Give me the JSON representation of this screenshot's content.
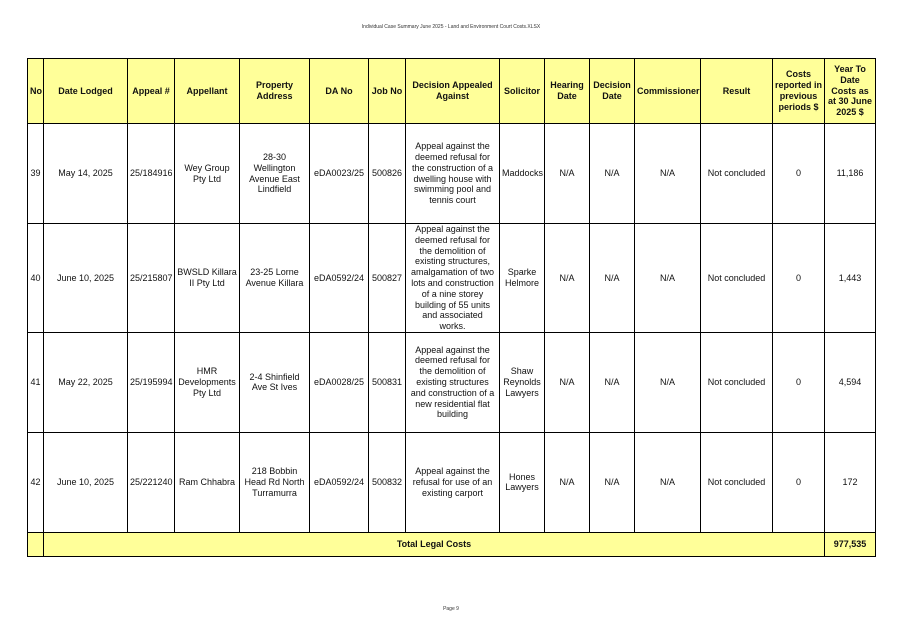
{
  "document": {
    "title": "Individual Case Summary June 2025 - Land and Environment Court Costs.XLSX",
    "page": "Page 9"
  },
  "table": {
    "headers": [
      "No",
      "Date Lodged",
      "Appeal #",
      "Appellant",
      "Property Address",
      "DA No",
      "Job No",
      "Decision Appealed Against",
      "Solicitor",
      "Hearing Date",
      "Decision Date",
      "Commissioner",
      "Result",
      "Costs reported in previous periods $",
      "Year To Date Costs as at 30 June 2025 $"
    ],
    "rows": [
      [
        "39",
        "May 14, 2025",
        "25/184916",
        "Wey Group Pty Ltd",
        "28-30 Wellington Avenue East Lindfield",
        "eDA0023/25",
        "500826",
        "Appeal against the deemed refusal for the construction of a dwelling house with swimming pool and tennis court",
        "Maddocks",
        "N/A",
        "N/A",
        "N/A",
        "Not concluded",
        "0",
        "11,186"
      ],
      [
        "40",
        "June 10, 2025",
        "25/215807",
        "BWSLD Killara II Pty Ltd",
        "23-25 Lorne Avenue Killara",
        "eDA0592/24",
        "500827",
        "Appeal against the deemed refusal for the demolition of existing structures, amalgamation of two lots and construction of a nine storey building of 55 units and associated works.",
        "Sparke Helmore",
        "N/A",
        "N/A",
        "N/A",
        "Not concluded",
        "0",
        "1,443"
      ],
      [
        "41",
        "May 22, 2025",
        "25/195994",
        "HMR Developments Pty Ltd",
        "2-4 Shinfield Ave St Ives",
        "eDA0028/25",
        "500831",
        "Appeal against the deemed refusal for the demolition of existing structures and construction of a new residential flat building",
        "Shaw Reynolds Lawyers",
        "N/A",
        "N/A",
        "N/A",
        "Not concluded",
        "0",
        "4,594"
      ],
      [
        "42",
        "June 10, 2025",
        "25/221240",
        "Ram Chhabra",
        "218 Bobbin Head Rd North Turramurra",
        "eDA0592/24",
        "500832",
        "Appeal against the refusal for use of an existing carport",
        "Hones Lawyers",
        "N/A",
        "N/A",
        "N/A",
        "Not concluded",
        "0",
        "172"
      ]
    ],
    "total_label": "Total Legal Costs",
    "total_value": "977,535"
  }
}
